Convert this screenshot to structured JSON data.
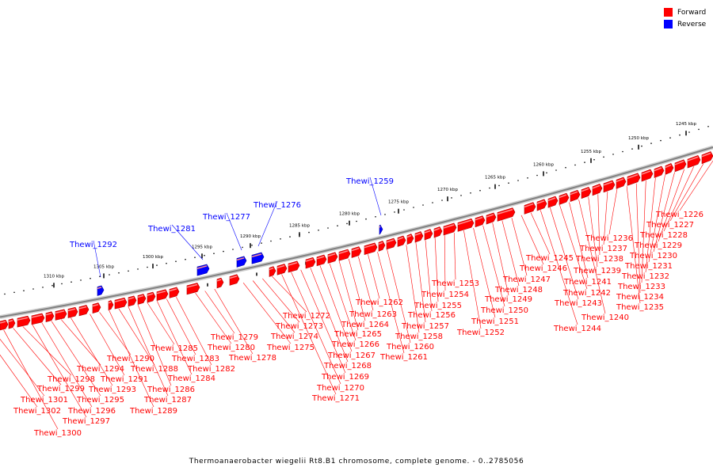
{
  "legend": [
    {
      "label": "Forward",
      "color": "#ff0000"
    },
    {
      "label": "Reverse",
      "color": "#0000ff"
    }
  ],
  "caption": "Thermoanaerobacter wiegelii Rt8.B1 chromosome, complete genome. - 0..2785056",
  "colors": {
    "forward": "#ff0000",
    "reverse": "#0000ff",
    "backbone": "#808080",
    "ticks": "#000000"
  },
  "ruler_labels": [
    "1245 kbp",
    "1250 kbp",
    "1255 kbp",
    "1260 kbp",
    "1265 kbp",
    "1270 kbp",
    "1275 kbp",
    "1280 kbp",
    "1285 kbp",
    "1290 kbp",
    "1295 kbp",
    "1300 kbp",
    "1305 kbp",
    "1310 kbp"
  ],
  "reverse_genes": [
    "Thewi_1259",
    "Thewi_1276",
    "Thewi_1277",
    "Thewi_1281",
    "Thewi_1292"
  ],
  "forward_genes": [
    "Thewi_1226",
    "Thewi_1227",
    "Thewi_1228",
    "Thewi_1229",
    "Thewi_1230",
    "Thewi_1231",
    "Thewi_1232",
    "Thewi_1233",
    "Thewi_1234",
    "Thewi_1235",
    "Thewi_1236",
    "Thewi_1237",
    "Thewi_1238",
    "Thewi_1239",
    "Thewi_1240",
    "Thewi_1241",
    "Thewi_1242",
    "Thewi_1243",
    "Thewi_1244",
    "Thewi_1245",
    "Thewi_1246",
    "Thewi_1247",
    "Thewi_1248",
    "Thewi_1249",
    "Thewi_1250",
    "Thewi_1251",
    "Thewi_1252",
    "Thewi_1253",
    "Thewi_1254",
    "Thewi_1255",
    "Thewi_1256",
    "Thewi_1257",
    "Thewi_1258",
    "Thewi_1260",
    "Thewi_1261",
    "Thewi_1262",
    "Thewi_1263",
    "Thewi_1264",
    "Thewi_1265",
    "Thewi_1266",
    "Thewi_1267",
    "Thewi_1268",
    "Thewi_1269",
    "Thewi_1270",
    "Thewi_1271",
    "Thewi_1272",
    "Thewi_1273",
    "Thewi_1274",
    "Thewi_1275",
    "Thewi_1278",
    "Thewi_1279",
    "Thewi_1280",
    "Thewi_1282",
    "Thewi_1283",
    "Thewi_1284",
    "Thewi_1285",
    "Thewi_1286",
    "Thewi_1287",
    "Thewi_1288",
    "Thewi_1289",
    "Thewi_1290",
    "Thewi_1291",
    "Thewi_1293",
    "Thewi_1294",
    "Thewi_1295",
    "Thewi_1296",
    "Thewi_1297",
    "Thewi_1298",
    "Thewi_1299",
    "Thewi_1300",
    "Thewi_1301",
    "Thewi_1302"
  ]
}
